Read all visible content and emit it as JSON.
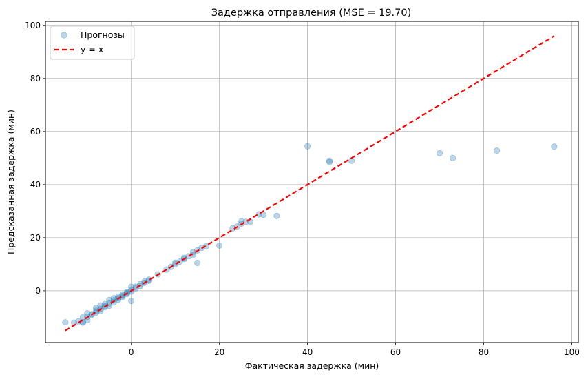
{
  "chart_data": {
    "type": "scatter",
    "title": "Задержка отправления (MSE = 19.70)",
    "xlabel": "Фактическая задержка (мин)",
    "ylabel": "Предсказанная задержка (мин)",
    "xlim": [
      -19.5,
      101.5
    ],
    "ylim": [
      -19.5,
      101.5
    ],
    "xticks": [
      0,
      20,
      40,
      60,
      80,
      100
    ],
    "yticks": [
      0,
      20,
      40,
      60,
      80,
      100
    ],
    "grid": true,
    "legend_position": "top-left",
    "series": [
      {
        "name": "Прогнозы",
        "kind": "scatter",
        "color": "#1f77b4",
        "alpha": 0.3,
        "points": [
          [
            -15,
            -11.9
          ],
          [
            -13,
            -12
          ],
          [
            -12,
            -11.5
          ],
          [
            -11,
            -12
          ],
          [
            -11,
            -11.8
          ],
          [
            -11,
            -10
          ],
          [
            -10,
            -11
          ],
          [
            -10,
            -9.8
          ],
          [
            -10,
            -8.5
          ],
          [
            -9,
            -9
          ],
          [
            -9,
            -8.8
          ],
          [
            -8,
            -8.2
          ],
          [
            -8,
            -7.5
          ],
          [
            -8,
            -6.5
          ],
          [
            -7,
            -7.6
          ],
          [
            -7,
            -6.8
          ],
          [
            -7,
            -5.5
          ],
          [
            -6,
            -6.2
          ],
          [
            -6,
            -5.8
          ],
          [
            -6,
            -5
          ],
          [
            -5,
            -5.6
          ],
          [
            -5,
            -4.8
          ],
          [
            -5,
            -3.5
          ],
          [
            -4,
            -4.3
          ],
          [
            -4,
            -3.6
          ],
          [
            -4,
            -2.8
          ],
          [
            -3,
            -3.4
          ],
          [
            -3,
            -2.8
          ],
          [
            -3,
            -2.2
          ],
          [
            -2,
            -2.4
          ],
          [
            -2,
            -1.9
          ],
          [
            -2,
            -1.5
          ],
          [
            -1,
            -1.2
          ],
          [
            -1,
            -0.8
          ],
          [
            -1,
            -0.5
          ],
          [
            0,
            -0.3
          ],
          [
            0,
            0.4
          ],
          [
            0,
            1.5
          ],
          [
            0,
            -3.8
          ],
          [
            1,
            0.9
          ],
          [
            1,
            1.5
          ],
          [
            2,
            1.8
          ],
          [
            2,
            2.5
          ],
          [
            3,
            3
          ],
          [
            3,
            3.5
          ],
          [
            4,
            3.8
          ],
          [
            4,
            4.2
          ],
          [
            6,
            6.2
          ],
          [
            8,
            8
          ],
          [
            9,
            9
          ],
          [
            10,
            10
          ],
          [
            10,
            10.6
          ],
          [
            11,
            11
          ],
          [
            12,
            12
          ],
          [
            12,
            12.4
          ],
          [
            13,
            13
          ],
          [
            14,
            13.5
          ],
          [
            14,
            14.5
          ],
          [
            15,
            15.2
          ],
          [
            15,
            10.5
          ],
          [
            16,
            16.2
          ],
          [
            17,
            16.8
          ],
          [
            20,
            17
          ],
          [
            23,
            23.5
          ],
          [
            24,
            24.2
          ],
          [
            25,
            25.3
          ],
          [
            25,
            26.2
          ],
          [
            26,
            26
          ],
          [
            27,
            26
          ],
          [
            29,
            28.8
          ],
          [
            30,
            28.6
          ],
          [
            33,
            28.2
          ],
          [
            40,
            54.4
          ],
          [
            45,
            48.5
          ],
          [
            45,
            49
          ],
          [
            50,
            49
          ],
          [
            70,
            51.8
          ],
          [
            73,
            50
          ],
          [
            83,
            52.8
          ],
          [
            96,
            54.3
          ]
        ]
      },
      {
        "name": "y = x",
        "kind": "line",
        "color": "#ff0000",
        "dashed": true,
        "points": [
          [
            -15,
            -15
          ],
          [
            96,
            96
          ]
        ]
      }
    ]
  }
}
